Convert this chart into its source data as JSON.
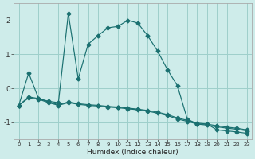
{
  "title": "",
  "xlabel": "Humidex (Indice chaleur)",
  "bg_color": "#ceecea",
  "grid_color": "#9ecfcb",
  "line_color": "#1a7070",
  "line1_y": [
    -0.5,
    0.45,
    -0.3,
    -0.38,
    -0.42,
    2.2,
    0.28,
    1.3,
    1.55,
    1.78,
    1.82,
    2.0,
    1.92,
    1.55,
    1.1,
    0.55,
    0.08,
    -0.9,
    -1.05,
    -1.05,
    -1.22,
    -1.25,
    -1.28,
    -1.32
  ],
  "line2_y": [
    -0.5,
    -0.28,
    -0.32,
    -0.42,
    -0.5,
    -0.42,
    -0.47,
    -0.5,
    -0.52,
    -0.55,
    -0.57,
    -0.6,
    -0.63,
    -0.67,
    -0.73,
    -0.8,
    -0.9,
    -0.97,
    -1.05,
    -1.08,
    -1.13,
    -1.17,
    -1.2,
    -1.25
  ],
  "line3_y": [
    -0.5,
    -0.25,
    -0.3,
    -0.4,
    -0.48,
    -0.4,
    -0.45,
    -0.48,
    -0.5,
    -0.53,
    -0.55,
    -0.58,
    -0.61,
    -0.65,
    -0.7,
    -0.77,
    -0.87,
    -0.94,
    -1.02,
    -1.05,
    -1.1,
    -1.14,
    -1.17,
    -1.22
  ],
  "xlim": [
    -0.5,
    23.5
  ],
  "ylim": [
    -1.5,
    2.5
  ],
  "yticks": [
    -1,
    0,
    1,
    2
  ],
  "xticks": [
    0,
    1,
    2,
    3,
    4,
    5,
    6,
    7,
    8,
    9,
    10,
    11,
    12,
    13,
    14,
    15,
    16,
    17,
    18,
    19,
    20,
    21,
    22,
    23
  ],
  "xtick_labels": [
    "0",
    "1",
    "2",
    "3",
    "4",
    "5",
    "6",
    "7",
    "8",
    "9",
    "10",
    "11",
    "12",
    "13",
    "14",
    "15",
    "16",
    "17",
    "18",
    "19",
    "20",
    "21",
    "22",
    "23"
  ]
}
